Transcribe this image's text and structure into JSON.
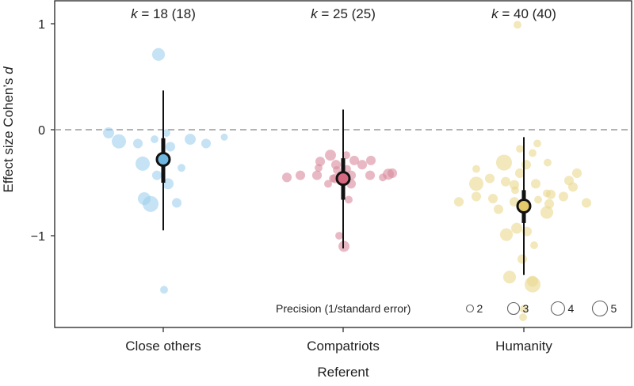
{
  "chart_data": {
    "type": "scatter",
    "subtype": "meta-analysis bubble plot with estimate and interval bars",
    "xlabel": "Referent",
    "ylabel": "Effect size Cohen’s ",
    "ylabel_italic": "d",
    "ylim": [
      -1.87,
      1.22
    ],
    "yticks": [
      {
        "value": 1,
        "label": "1"
      },
      {
        "value": 0,
        "label": "0"
      },
      {
        "value": -1,
        "label": "−1"
      }
    ],
    "reference_line": {
      "value": 0,
      "style": "dashed",
      "color": "#9a9a9a"
    },
    "grid": false,
    "categories": [
      "Close others",
      "Compatriots",
      "Humanity"
    ],
    "k_labels": [
      {
        "k": "k",
        "text": " = 18 (18)"
      },
      {
        "k": "k",
        "text": " = 25 (25)"
      },
      {
        "k": "k",
        "text": " = 40 (40)"
      }
    ],
    "legend": {
      "title": "Precision (1/standard error)",
      "position": "bottom-right",
      "sizes": [
        {
          "value": 2,
          "label": "2"
        },
        {
          "value": 3,
          "label": "3"
        },
        {
          "value": 4,
          "label": "4"
        },
        {
          "value": 5,
          "label": "5"
        }
      ]
    },
    "series": [
      {
        "category": "Close others",
        "color": "#9fd0ec",
        "marker_color": "#6fb6e0",
        "estimate": -0.28,
        "ci": [
          -0.5,
          -0.08
        ],
        "pi": [
          -0.95,
          0.37
        ],
        "points": [
          {
            "d": 0.71,
            "precision": 3.2
          },
          {
            "d": -0.03,
            "precision": 2.4
          },
          {
            "d": -0.11,
            "precision": 4
          },
          {
            "d": -0.13,
            "precision": 1.8
          },
          {
            "d": -0.09,
            "precision": 1.2
          },
          {
            "d": -0.03,
            "precision": 1.2
          },
          {
            "d": -0.16,
            "precision": 1.8
          },
          {
            "d": -0.09,
            "precision": 2.4
          },
          {
            "d": -0.13,
            "precision": 1.8
          },
          {
            "d": -0.07,
            "precision": 1.0
          },
          {
            "d": -0.32,
            "precision": 4
          },
          {
            "d": -0.43,
            "precision": 1.8
          },
          {
            "d": -0.51,
            "precision": 2.4
          },
          {
            "d": -0.36,
            "precision": 1.2
          },
          {
            "d": -0.65,
            "precision": 3.2
          },
          {
            "d": -0.7,
            "precision": 5
          },
          {
            "d": -0.69,
            "precision": 1.8
          },
          {
            "d": -1.51,
            "precision": 1.2
          }
        ]
      },
      {
        "category": "Compatriots",
        "color": "#d98b9c",
        "marker_color": "#d5697f",
        "estimate": -0.46,
        "ci": [
          -0.66,
          -0.27
        ],
        "pi": [
          -1.12,
          0.19
        ],
        "points": [
          {
            "d": -0.45,
            "precision": 1.8
          },
          {
            "d": -0.43,
            "precision": 1.8
          },
          {
            "d": -0.43,
            "precision": 1.8
          },
          {
            "d": -0.36,
            "precision": 1.2
          },
          {
            "d": -0.3,
            "precision": 1.8
          },
          {
            "d": -0.24,
            "precision": 2.4
          },
          {
            "d": -0.33,
            "precision": 1.8
          },
          {
            "d": -0.24,
            "precision": 1.2
          },
          {
            "d": -0.29,
            "precision": 1.8
          },
          {
            "d": -0.33,
            "precision": 1.8
          },
          {
            "d": -0.29,
            "precision": 1.8
          },
          {
            "d": -0.43,
            "precision": 1.8
          },
          {
            "d": -0.45,
            "precision": 1.2
          },
          {
            "d": -0.42,
            "precision": 2.4
          },
          {
            "d": -0.41,
            "precision": 1.8
          },
          {
            "d": -0.51,
            "precision": 1.2
          },
          {
            "d": -0.46,
            "precision": 1.8
          },
          {
            "d": -0.43,
            "precision": 1.8
          },
          {
            "d": -0.51,
            "precision": 1.8
          },
          {
            "d": -0.66,
            "precision": 1.2
          },
          {
            "d": -1.0,
            "precision": 1.2
          },
          {
            "d": -1.1,
            "precision": 2.4
          },
          {
            "d": -0.38,
            "precision": 1.2
          },
          {
            "d": -0.46,
            "precision": 1.2
          },
          {
            "d": -0.37,
            "precision": 1.2
          }
        ]
      },
      {
        "category": "Humanity",
        "color": "#e9d98f",
        "marker_color": "#e3c96a",
        "estimate": -0.72,
        "ci": [
          -0.88,
          -0.57
        ],
        "pi": [
          -1.37,
          -0.07
        ],
        "points": [
          {
            "d": 0.99,
            "precision": 1.2
          },
          {
            "d": -0.13,
            "precision": 1.2
          },
          {
            "d": -0.18,
            "precision": 1.2
          },
          {
            "d": -0.22,
            "precision": 1.2
          },
          {
            "d": -0.31,
            "precision": 5
          },
          {
            "d": -0.33,
            "precision": 1.8
          },
          {
            "d": -0.31,
            "precision": 1.2
          },
          {
            "d": -0.37,
            "precision": 1.2
          },
          {
            "d": -0.41,
            "precision": 1.8
          },
          {
            "d": -0.41,
            "precision": 1.8
          },
          {
            "d": -0.48,
            "precision": 1.8
          },
          {
            "d": -0.46,
            "precision": 1.8
          },
          {
            "d": -0.49,
            "precision": 1.8
          },
          {
            "d": -0.51,
            "precision": 4
          },
          {
            "d": -0.51,
            "precision": 1.8
          },
          {
            "d": -0.52,
            "precision": 1.8
          },
          {
            "d": -0.57,
            "precision": 1.2
          },
          {
            "d": -0.6,
            "precision": 1.2
          },
          {
            "d": -0.54,
            "precision": 1.8
          },
          {
            "d": -0.61,
            "precision": 1.8
          },
          {
            "d": -0.68,
            "precision": 1.8
          },
          {
            "d": -0.63,
            "precision": 1.8
          },
          {
            "d": -0.65,
            "precision": 1.8
          },
          {
            "d": -0.63,
            "precision": 1.8
          },
          {
            "d": -0.69,
            "precision": 1.8
          },
          {
            "d": -0.68,
            "precision": 1.8
          },
          {
            "d": -0.66,
            "precision": 1.2
          },
          {
            "d": -0.7,
            "precision": 1.8
          },
          {
            "d": -0.75,
            "precision": 1.8
          },
          {
            "d": -0.78,
            "precision": 3.2
          },
          {
            "d": -0.93,
            "precision": 2.4
          },
          {
            "d": -0.99,
            "precision": 3.2
          },
          {
            "d": -0.96,
            "precision": 1.8
          },
          {
            "d": -1.09,
            "precision": 1.2
          },
          {
            "d": -1.22,
            "precision": 1.8
          },
          {
            "d": -1.39,
            "precision": 3.2
          },
          {
            "d": -1.43,
            "precision": 2.4
          },
          {
            "d": -1.46,
            "precision": 5
          },
          {
            "d": -1.69,
            "precision": 1.2
          },
          {
            "d": -1.77,
            "precision": 1.2
          }
        ]
      }
    ]
  }
}
